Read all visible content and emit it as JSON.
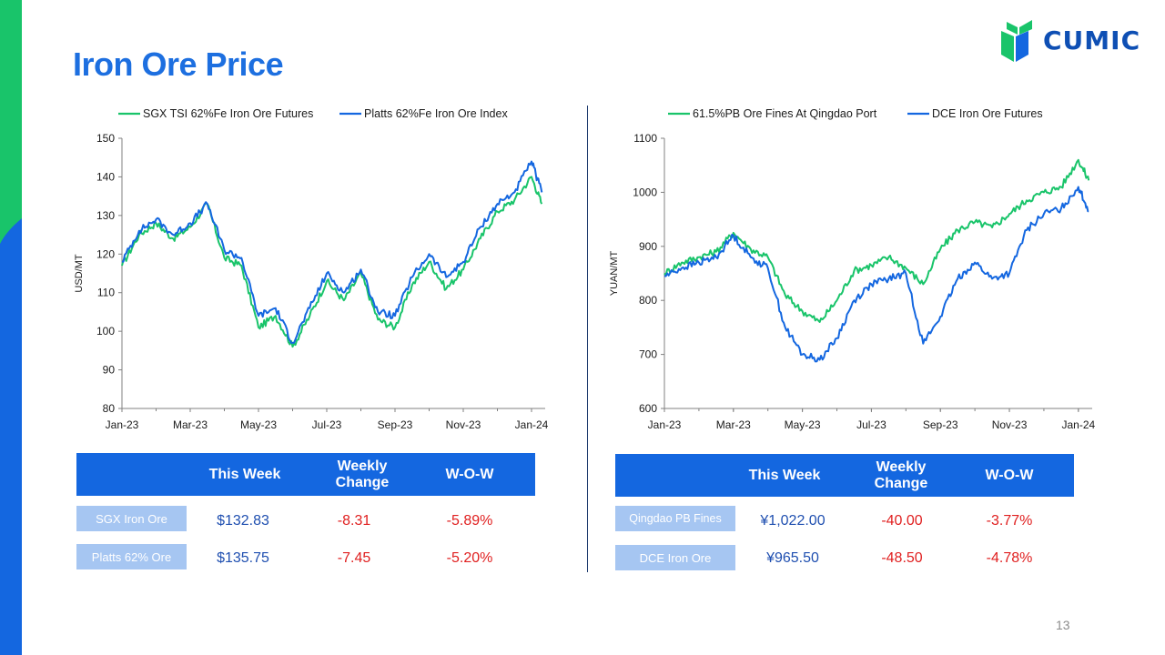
{
  "page": {
    "title": "Iron Ore Price",
    "brand": "CUMIC",
    "page_number": "13",
    "colors": {
      "accent_blue": "#1467e0",
      "accent_green": "#19c46a",
      "title_blue": "#1d6fe0",
      "negative_red": "#e02020"
    }
  },
  "chart_data": [
    {
      "type": "line",
      "ylabel": "USD/MT",
      "ylim": [
        80,
        150
      ],
      "yticks": [
        "80",
        "90",
        "100",
        "110",
        "120",
        "130",
        "140",
        "150"
      ],
      "xticks": [
        "Jan-23",
        "Mar-23",
        "May-23",
        "Jul-23",
        "Sep-23",
        "Nov-23",
        "Jan-24"
      ],
      "legend_position": "top",
      "grid": false,
      "x": [
        0,
        0.5,
        1,
        1.5,
        2,
        2.5,
        3,
        3.5,
        4,
        4.5,
        5,
        5.5,
        6,
        6.5,
        7,
        7.5,
        8,
        8.5,
        9,
        9.5,
        10,
        10.5,
        11,
        11.5,
        12,
        12.3
      ],
      "series": [
        {
          "name": "SGX TSI 62%Fe Iron Ore Futures",
          "color": "#19c46a",
          "values": [
            117,
            125,
            128,
            124,
            127,
            133,
            119,
            117,
            101,
            104,
            96,
            104,
            113,
            108,
            115,
            103,
            101,
            112,
            118,
            111,
            116,
            124,
            131,
            134,
            140,
            133
          ]
        },
        {
          "name": "Platts 62%Fe Iron Ore Index",
          "color": "#1467e0",
          "values": [
            118,
            126,
            129,
            125,
            128,
            133,
            121,
            119,
            104,
            106,
            97,
            106,
            115,
            110,
            116,
            105,
            104,
            114,
            120,
            114,
            118,
            127,
            133,
            136,
            144,
            136
          ]
        }
      ]
    },
    {
      "type": "line",
      "ylabel": "YUAN/MT",
      "ylim": [
        600,
        1100
      ],
      "yticks": [
        "600",
        "700",
        "800",
        "900",
        "1000",
        "1100"
      ],
      "xticks": [
        "Jan-23",
        "Mar-23",
        "May-23",
        "Jul-23",
        "Sep-23",
        "Nov-23",
        "Jan-24"
      ],
      "legend_position": "top",
      "grid": false,
      "x": [
        0,
        0.5,
        1,
        1.5,
        2,
        2.5,
        3,
        3.5,
        4,
        4.5,
        5,
        5.5,
        6,
        6.5,
        7,
        7.5,
        8,
        8.5,
        9,
        9.5,
        10,
        10.5,
        11,
        11.5,
        12,
        12.3
      ],
      "series": [
        {
          "name": "61.5%PB Ore Fines At Qingdao Port",
          "color": "#19c46a",
          "values": [
            850,
            870,
            880,
            890,
            925,
            895,
            880,
            810,
            780,
            760,
            800,
            855,
            865,
            880,
            860,
            830,
            895,
            930,
            945,
            935,
            960,
            985,
            1000,
            1010,
            1060,
            1022
          ]
        },
        {
          "name": "DCE Iron Ore Futures",
          "color": "#1467e0",
          "values": [
            845,
            860,
            870,
            880,
            920,
            880,
            860,
            750,
            700,
            690,
            730,
            800,
            830,
            840,
            850,
            720,
            770,
            840,
            870,
            840,
            850,
            930,
            960,
            970,
            1010,
            965
          ]
        }
      ]
    }
  ],
  "tables": {
    "left": {
      "headers": [
        "This Week",
        "Weekly\nChange",
        "W-O-W"
      ],
      "rows": [
        {
          "label": "SGX Iron Ore",
          "this_week": "$132.83",
          "weekly_change": "-8.31",
          "wow": "-5.89%"
        },
        {
          "label": "Platts 62% Ore",
          "this_week": "$135.75",
          "weekly_change": "-7.45",
          "wow": "-5.20%"
        }
      ]
    },
    "right": {
      "headers": [
        "This Week",
        "Weekly\nChange",
        "W-O-W"
      ],
      "rows": [
        {
          "label": "Qingdao PB Fines",
          "this_week": "¥1,022.00",
          "weekly_change": "-40.00",
          "wow": "-3.77%"
        },
        {
          "label": "DCE  Iron Ore",
          "this_week": "¥965.50",
          "weekly_change": "-48.50",
          "wow": "-4.78%"
        }
      ]
    }
  }
}
